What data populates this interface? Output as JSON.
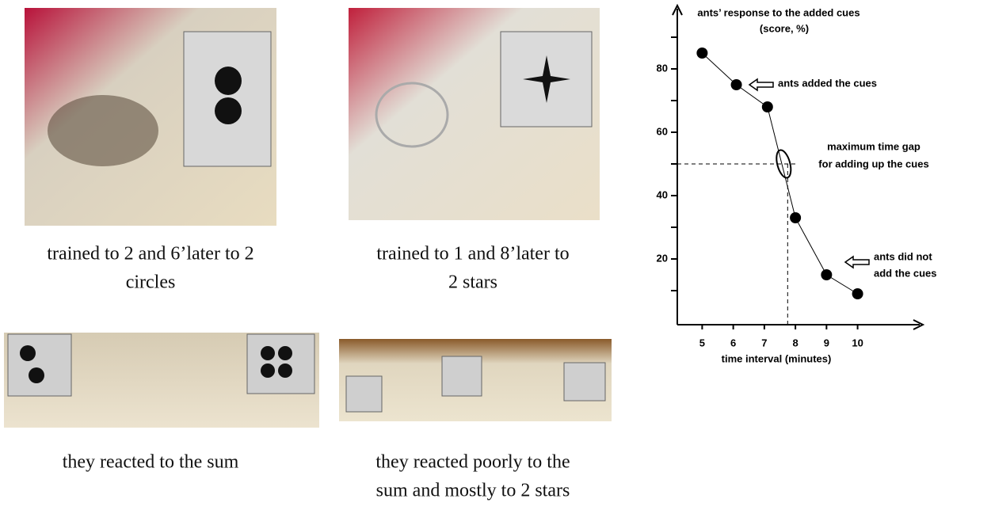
{
  "captions": [
    [
      "trained to 2 and 6’later to 2",
      "circles"
    ],
    [
      "trained to 1 and 8’later to",
      "2 stars"
    ],
    [
      "they reacted to the sum"
    ],
    [
      "they reacted poorly to the",
      "sum and mostly to 2 stars"
    ]
  ],
  "chart_data": {
    "type": "line",
    "title": [
      "ants’ response to the added cues",
      "(score, %)"
    ],
    "x_label": "time interval (minutes)",
    "x": [
      5,
      6.1,
      7.1,
      8,
      9,
      10
    ],
    "series": [
      {
        "color": "#000000",
        "values": [
          85,
          75,
          68,
          33,
          15,
          9
        ]
      }
    ],
    "xlim": [
      4.2,
      12.1
    ],
    "xticks": [
      5,
      6,
      7,
      8,
      9,
      10
    ],
    "ylim": [
      0,
      100
    ],
    "yticks": [
      20,
      40,
      60,
      80
    ],
    "yminor": [
      10,
      30,
      50,
      70,
      90
    ],
    "hline": 50,
    "vline": 7.75,
    "annotations": [
      [
        "maximum time gap",
        "for adding up the cues"
      ],
      [
        "ants added the cues"
      ],
      [
        "ants did not",
        "add the cues"
      ]
    ]
  }
}
